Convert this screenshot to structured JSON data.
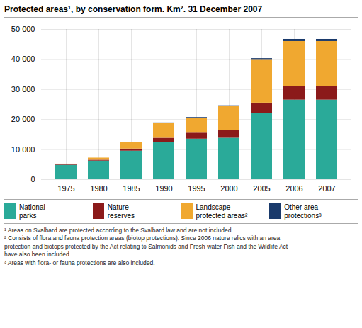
{
  "chart_data": {
    "type": "bar",
    "title": "Protected areas¹, by conservation form. Km². 31 December 2007",
    "categories": [
      "1975",
      "1980",
      "1985",
      "1990",
      "1995",
      "2000",
      "2005",
      "2006",
      "2007"
    ],
    "series": [
      {
        "name": "National\nparks",
        "color": "#2aaa99",
        "values": [
          4800,
          6200,
          9500,
          12300,
          13500,
          13800,
          22000,
          26500,
          26500
        ]
      },
      {
        "name": "Nature\nreserves",
        "color": "#8b1a1a",
        "values": [
          200,
          300,
          700,
          1500,
          2000,
          2500,
          3500,
          4500,
          4500
        ]
      },
      {
        "name": "Landscape\nprotected areas²",
        "color": "#f0a830",
        "values": [
          200,
          700,
          2200,
          5000,
          5000,
          8200,
          14500,
          15000,
          15000
        ]
      },
      {
        "name": "Other area\nprotections³",
        "color": "#1a3a6b",
        "values": [
          0,
          0,
          0,
          100,
          200,
          100,
          300,
          700,
          700
        ]
      }
    ],
    "stacked": true,
    "ylim": [
      0,
      50000
    ],
    "yticks": [
      0,
      {
        "value": 10000,
        "label": "10 000"
      },
      {
        "value": 20000,
        "label": "20 000"
      },
      {
        "value": 30000,
        "label": "30 000"
      },
      {
        "value": 40000,
        "label": "40 000"
      },
      {
        "value": 50000,
        "label": "50 000"
      }
    ],
    "grid": true,
    "legend": "bottom",
    "annotations": [
      "¹ Areas on Svalbard are protected according to the Svalbard law and are not included.",
      "² Consists of flora and fauna protection areas (biotop protections). Since 2006 nature relics with an area",
      "protection and biotops protected by the Act relating to Salmonids and Fresh-water Fish and the Wildlife Act",
      "have also been included.",
      "³ Areas with flora- or fauna protections are also included."
    ]
  }
}
